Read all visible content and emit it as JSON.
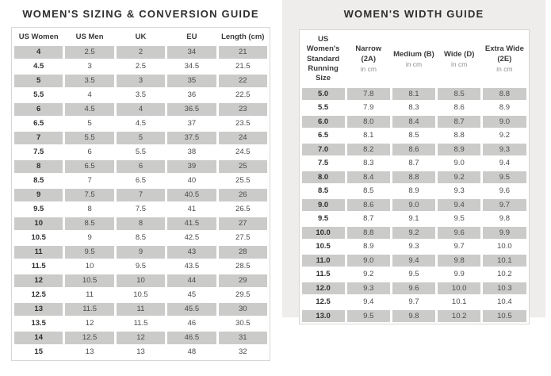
{
  "colors": {
    "shaded_row": "#cbcbca",
    "right_panel_bg": "#efedec",
    "table_border": "#d9d7d5",
    "title_text": "#2e2e2e",
    "cell_text": "#4c4c4c",
    "header_sub_text": "#8e8e8e"
  },
  "sizing_guide": {
    "title": "WOMEN'S SIZING & CONVERSION GUIDE",
    "columns": [
      "US Women",
      "US Men",
      "UK",
      "EU",
      "Length (cm)"
    ],
    "rows": [
      [
        "4",
        "2.5",
        "2",
        "34",
        "21"
      ],
      [
        "4.5",
        "3",
        "2.5",
        "34.5",
        "21.5"
      ],
      [
        "5",
        "3.5",
        "3",
        "35",
        "22"
      ],
      [
        "5.5",
        "4",
        "3.5",
        "36",
        "22.5"
      ],
      [
        "6",
        "4.5",
        "4",
        "36.5",
        "23"
      ],
      [
        "6.5",
        "5",
        "4.5",
        "37",
        "23.5"
      ],
      [
        "7",
        "5.5",
        "5",
        "37.5",
        "24"
      ],
      [
        "7.5",
        "6",
        "5.5",
        "38",
        "24.5"
      ],
      [
        "8",
        "6.5",
        "6",
        "39",
        "25"
      ],
      [
        "8.5",
        "7",
        "6.5",
        "40",
        "25.5"
      ],
      [
        "9",
        "7.5",
        "7",
        "40.5",
        "26"
      ],
      [
        "9.5",
        "8",
        "7.5",
        "41",
        "26.5"
      ],
      [
        "10",
        "8.5",
        "8",
        "41.5",
        "27"
      ],
      [
        "10.5",
        "9",
        "8.5",
        "42.5",
        "27.5"
      ],
      [
        "11",
        "9.5",
        "9",
        "43",
        "28"
      ],
      [
        "11.5",
        "10",
        "9.5",
        "43.5",
        "28.5"
      ],
      [
        "12",
        "10.5",
        "10",
        "44",
        "29"
      ],
      [
        "12.5",
        "11",
        "10.5",
        "45",
        "29.5"
      ],
      [
        "13",
        "11.5",
        "11",
        "45.5",
        "30"
      ],
      [
        "13.5",
        "12",
        "11.5",
        "46",
        "30.5"
      ],
      [
        "14",
        "12.5",
        "12",
        "46.5",
        "31"
      ],
      [
        "15",
        "13",
        "13",
        "48",
        "32"
      ]
    ]
  },
  "width_guide": {
    "title": "WOMEN'S WIDTH GUIDE",
    "columns": [
      {
        "label": "US Women's Standard Running Size",
        "sub": ""
      },
      {
        "label": "Narrow (2A)",
        "sub": "in cm"
      },
      {
        "label": "Medium (B)",
        "sub": "in cm"
      },
      {
        "label": "Wide (D)",
        "sub": "in cm"
      },
      {
        "label": "Extra Wide (2E)",
        "sub": "in cm"
      }
    ],
    "rows": [
      [
        "5.0",
        "7.8",
        "8.1",
        "8.5",
        "8.8"
      ],
      [
        "5.5",
        "7.9",
        "8.3",
        "8.6",
        "8.9"
      ],
      [
        "6.0",
        "8.0",
        "8.4",
        "8.7",
        "9.0"
      ],
      [
        "6.5",
        "8.1",
        "8.5",
        "8.8",
        "9.2"
      ],
      [
        "7.0",
        "8.2",
        "8.6",
        "8.9",
        "9.3"
      ],
      [
        "7.5",
        "8.3",
        "8.7",
        "9.0",
        "9.4"
      ],
      [
        "8.0",
        "8.4",
        "8.8",
        "9.2",
        "9.5"
      ],
      [
        "8.5",
        "8.5",
        "8.9",
        "9.3",
        "9.6"
      ],
      [
        "9.0",
        "8.6",
        "9.0",
        "9.4",
        "9.7"
      ],
      [
        "9.5",
        "8.7",
        "9.1",
        "9.5",
        "9.8"
      ],
      [
        "10.0",
        "8.8",
        "9.2",
        "9.6",
        "9.9"
      ],
      [
        "10.5",
        "8.9",
        "9.3",
        "9.7",
        "10.0"
      ],
      [
        "11.0",
        "9.0",
        "9.4",
        "9.8",
        "10.1"
      ],
      [
        "11.5",
        "9.2",
        "9.5",
        "9.9",
        "10.2"
      ],
      [
        "12.0",
        "9.3",
        "9.6",
        "10.0",
        "10.3"
      ],
      [
        "12.5",
        "9.4",
        "9.7",
        "10.1",
        "10.4"
      ],
      [
        "13.0",
        "9.5",
        "9.8",
        "10.2",
        "10.5"
      ]
    ]
  }
}
